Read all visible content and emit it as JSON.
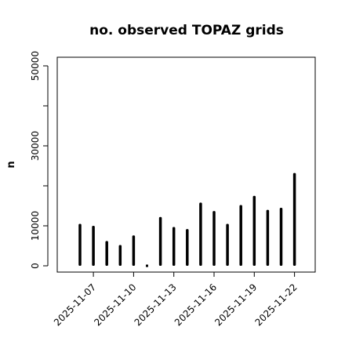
{
  "chart_data": {
    "type": "bar",
    "title": "no. observed TOPAZ grids",
    "xlabel": "",
    "ylabel": "n",
    "ylim": [
      0,
      52000
    ],
    "yticks": [
      0,
      10000,
      30000,
      50000
    ],
    "ytick_labels": [
      "0",
      "10000",
      "30000",
      "50000"
    ],
    "grid": false,
    "categories": [
      "2025-11-06",
      "2025-11-07",
      "2025-11-08",
      "2025-11-09",
      "2025-11-10",
      "2025-11-11",
      "2025-11-12",
      "2025-11-13",
      "2025-11-14",
      "2025-11-15",
      "2025-11-16",
      "2025-11-17",
      "2025-11-18",
      "2025-11-19",
      "2025-11-20",
      "2025-11-21",
      "2025-11-22"
    ],
    "values": [
      10500,
      10000,
      6200,
      5200,
      7600,
      0,
      12200,
      9700,
      9200,
      15800,
      13700,
      10500,
      15200,
      17500,
      14000,
      14500,
      23200
    ],
    "x_tick_labels": [
      {
        "category": "2025-11-07",
        "label": "2025-11-07",
        "color": "#000000"
      },
      {
        "category": "2025-11-10",
        "label": "2025-11-10",
        "color": "#000000"
      },
      {
        "category": "2025-11-13",
        "label": "2025-11-13",
        "color": "#228B22"
      },
      {
        "category": "2025-11-16",
        "label": "2025-11-16",
        "color": "#000000"
      },
      {
        "category": "2025-11-19",
        "label": "2025-11-19",
        "color": "#000000"
      },
      {
        "category": "2025-11-22",
        "label": "2025-11-22",
        "color": "#000000"
      }
    ],
    "colors": {
      "bar": "#000000",
      "axis": "#000000",
      "highlight_tick": "#228B22"
    }
  }
}
